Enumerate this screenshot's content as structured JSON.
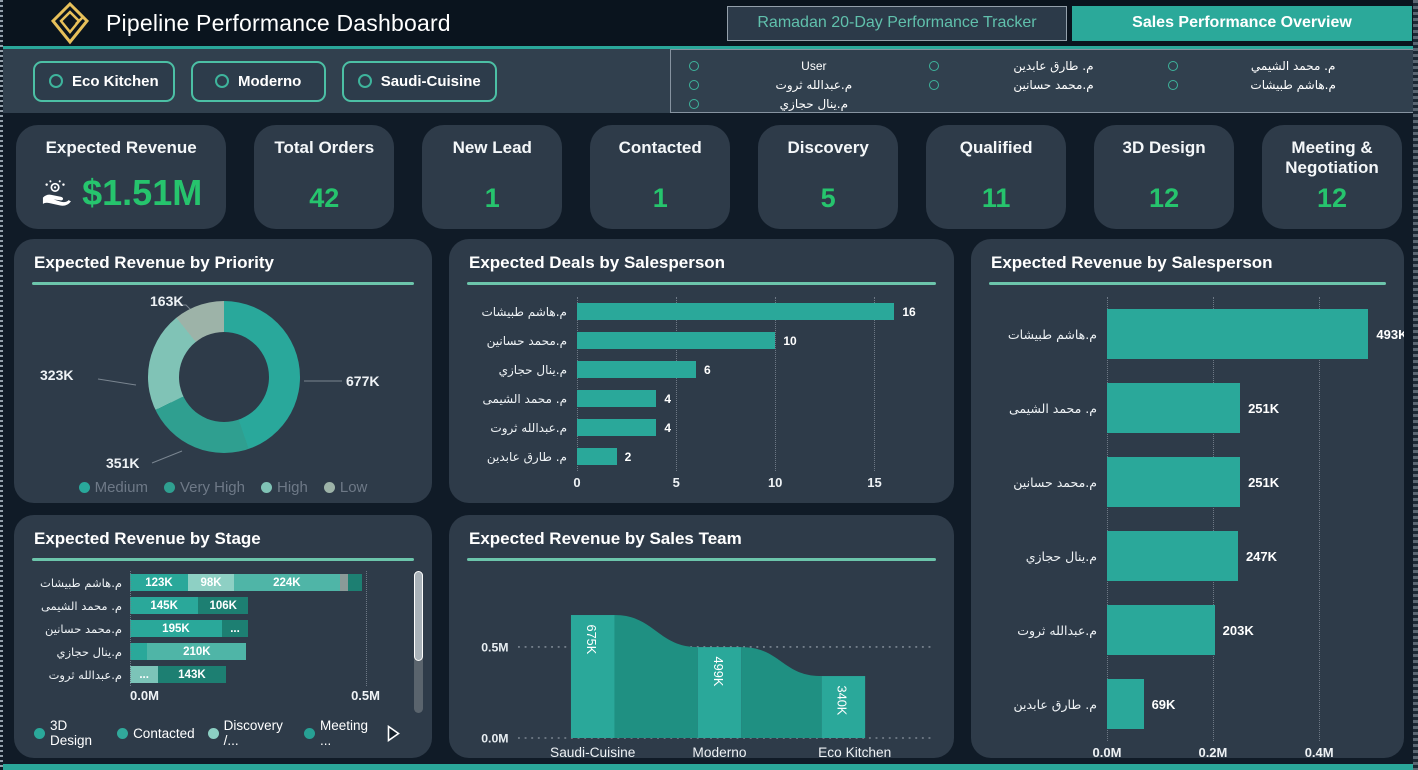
{
  "header": {
    "title": "Pipeline Performance Dashboard",
    "logo": "gold-diamond-logo",
    "tabs": [
      {
        "label": "Ramadan 20-Day Performance Tracker",
        "active": false
      },
      {
        "label": "Sales Performance Overview",
        "active": true
      }
    ]
  },
  "filters": {
    "teams": [
      {
        "label": "Eco Kitchen"
      },
      {
        "label": "Moderno"
      },
      {
        "label": "Saudi-Cuisine"
      }
    ],
    "user_slicer": {
      "columns": [
        [
          "User",
          "م.عبدالله ثروت",
          "م.ينال حجازي"
        ],
        [
          "م. طارق عابدين",
          "م.محمد حسانين"
        ],
        [
          "م. محمد الشيمي",
          "م.هاشم طبيشات"
        ]
      ]
    }
  },
  "kpis": [
    {
      "label": "Expected Revenue",
      "value": "$1.51M",
      "icon": "hand-coins-icon"
    },
    {
      "label": "Total Orders",
      "value": "42"
    },
    {
      "label": "New Lead",
      "value": "1"
    },
    {
      "label": "Contacted",
      "value": "1"
    },
    {
      "label": "Discovery",
      "value": "5"
    },
    {
      "label": "Qualified",
      "value": "11"
    },
    {
      "label": "3D Design",
      "value": "12"
    },
    {
      "label": "Meeting & Negotiation",
      "value": "12"
    }
  ],
  "colors": {
    "accent_teal": "#2aa79a",
    "card_bg": "#2e3b49",
    "page_bg": "#101b27",
    "kpi_green": "#26c46d",
    "title_underline": "#6cc5ab",
    "bar_teal": "#2aa89a",
    "dark_teal": "#1d7f72",
    "light_seafoam": "#8ed0c4",
    "mid_seafoam": "#4fb5a7",
    "gray_seg": "#8a9a98"
  },
  "chart_data": [
    {
      "name": "priority",
      "type": "pie",
      "title": "Expected Revenue by Priority",
      "categories": [
        "Medium",
        "Very High",
        "High",
        "Low"
      ],
      "values_k": [
        677,
        351,
        323,
        163
      ],
      "labels": [
        "677K",
        "351K",
        "323K",
        "163K"
      ],
      "colors": [
        "#29a89b",
        "#2f9f90",
        "#80c3b6",
        "#9db3a8"
      ],
      "legend_position": "bottom",
      "hole": true
    },
    {
      "name": "deals",
      "type": "bar",
      "title": "Expected Deals by Salesperson",
      "categories": [
        "م.هاشم طبيشات",
        "م.محمد حسانين",
        "م.ينال حجازي",
        "م. محمد الشيمى",
        "م.عبدالله ثروت",
        "م. طارق عابدين"
      ],
      "values": [
        16,
        10,
        6,
        4,
        4,
        2
      ],
      "xticks": [
        "0",
        "5",
        "10",
        "15"
      ],
      "xtick_pcts": [
        0,
        27.5,
        54.9,
        82.4
      ],
      "xmax": 18.2,
      "bar_color": "#2aa89a",
      "grid": true
    },
    {
      "name": "revenue_by_salesperson",
      "type": "bar",
      "title": "Expected Revenue by Salesperson",
      "categories": [
        "م.هاشم طبيشات",
        "م. محمد الشيمى",
        "م.محمد حسانين",
        "م.ينال حجازي",
        "م.عبدالله ثروت",
        "م. طارق عابدين"
      ],
      "values_k": [
        493,
        251,
        251,
        247,
        203,
        69
      ],
      "labels": [
        "493K",
        "251K",
        "251K",
        "247K",
        "203K",
        "69K"
      ],
      "xticks": [
        "0.0M",
        "0.2M",
        "0.4M"
      ],
      "xtick_pcts": [
        0,
        37.7,
        75.5
      ],
      "xmax_k": 530,
      "bar_color": "#2aa89a",
      "grid": true
    },
    {
      "name": "stage",
      "type": "stacked-bar",
      "title": "Expected Revenue by Stage",
      "categories": [
        "م.هاشم طبيشات",
        "م. محمد الشيمى",
        "م.محمد حسانين",
        "م.ينال حجازي",
        "م.عبدالله ثروت"
      ],
      "rows": [
        [
          {
            "label": "123K",
            "k": 123,
            "color": "#2aa89a"
          },
          {
            "label": "98K",
            "k": 98,
            "color": "#8ed0c4"
          },
          {
            "label": "224K",
            "k": 224,
            "color": "#4fb5a7"
          },
          {
            "label": "",
            "k": 18,
            "color": "#8a9a98"
          },
          {
            "label": "",
            "k": 30,
            "color": "#1d7f72"
          }
        ],
        [
          {
            "label": "145K",
            "k": 145,
            "color": "#2aa89a"
          },
          {
            "label": "106K",
            "k": 106,
            "color": "#1d7f72"
          }
        ],
        [
          {
            "label": "195K",
            "k": 195,
            "color": "#2aa89a"
          },
          {
            "label": "...",
            "k": 56,
            "color": "#1d7f72"
          }
        ],
        [
          {
            "label": "",
            "k": 37,
            "color": "#2aa89a"
          },
          {
            "label": "210K",
            "k": 210,
            "color": "#4fb5a7"
          }
        ],
        [
          {
            "label": "...",
            "k": 60,
            "color": "#7cc4b8"
          },
          {
            "label": "143K",
            "k": 143,
            "color": "#1d7f72"
          }
        ]
      ],
      "xticks": [
        "0.0M",
        "0.5M"
      ],
      "scale_k_at_pct": {
        "k": 500,
        "pct": 92
      },
      "legend": [
        {
          "label": "3D Design",
          "color": "#2aa89a"
        },
        {
          "label": "Contacted",
          "color": "#31a99b"
        },
        {
          "label": "Discovery /...",
          "color": "#8ccfc3"
        },
        {
          "label": "Meeting ...",
          "color": "#27a094"
        }
      ],
      "legend_more_arrow": true,
      "scrollbar": true
    },
    {
      "name": "sales_team",
      "type": "funnel",
      "title": "Expected Revenue by Sales Team",
      "categories": [
        "Saudi-Cuisine",
        "Moderno",
        "Eco Kitchen"
      ],
      "values_k": [
        675,
        499,
        340
      ],
      "labels": [
        "675K",
        "499K",
        "340K"
      ],
      "yticks": [
        "0.0M",
        "0.5M"
      ],
      "bar_color": "#2aa89a",
      "connector_color": "#1f9082"
    }
  ]
}
